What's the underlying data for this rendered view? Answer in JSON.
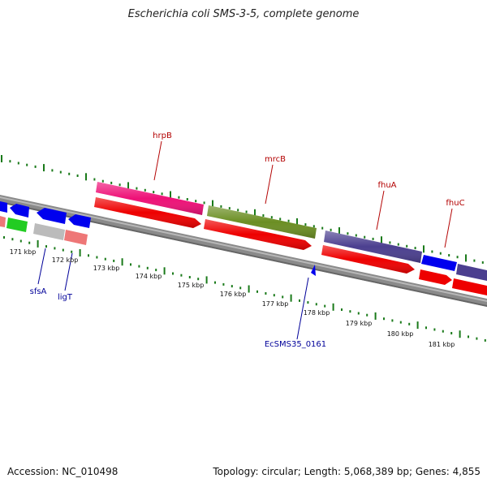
{
  "title": "Escherichia coli SMS-3-5, complete genome",
  "footer": {
    "accession": "Accession: NC_010498",
    "summary": "Topology: circular; Length: 5,068,389 bp; Genes: 4,855"
  },
  "ruler": {
    "labels": [
      "171 kbp",
      "172 kbp",
      "173 kbp",
      "174 kbp",
      "175 kbp",
      "176 kbp",
      "177 kbp",
      "178 kbp",
      "179 kbp",
      "180 kbp",
      "181 kbp"
    ]
  },
  "genes": {
    "labels": [
      "hrpB",
      "mrcB",
      "fhuA",
      "fhuC",
      "sfsA",
      "ligT",
      "EcSMS35_0161"
    ]
  },
  "colors": {
    "forward_label": "#b30000",
    "reverse_label": "#000099",
    "tick": "#1a7a1a",
    "backbone": "#888888",
    "cds": "#ee0000",
    "hrpB": "#ee1177",
    "mrcB": "#6b8e23",
    "fhuA": "#4b3f8f",
    "blue": "#0000ee",
    "green": "#22cc22",
    "grey": "#bbbbbb",
    "pink": "#ee7777"
  }
}
